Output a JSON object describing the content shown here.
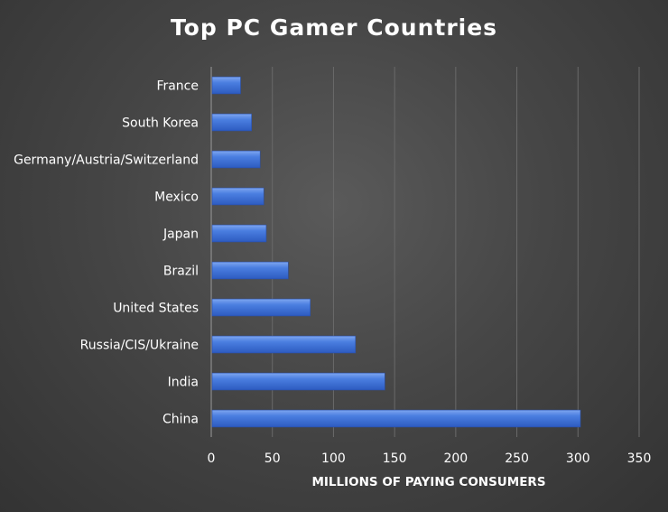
{
  "chart_data": {
    "type": "bar",
    "orientation": "horizontal",
    "title": "Top PC Gamer Countries",
    "xlabel": "MILLIONS OF PAYING CONSUMERS",
    "ylabel": "",
    "categories": [
      "China",
      "India",
      "Russia/CIS/Ukraine",
      "United States",
      "Brazil",
      "Japan",
      "Mexico",
      "Germany/Austria/Switzerland",
      "South Korea",
      "France"
    ],
    "values": [
      302,
      142,
      118,
      81,
      63,
      45,
      43,
      40,
      33,
      24
    ],
    "xlim": [
      0,
      350
    ],
    "xticks": [
      "0",
      "50",
      "100",
      "150",
      "200",
      "250",
      "300",
      "350"
    ],
    "grid": true,
    "bar_color": "#3f72d8"
  }
}
